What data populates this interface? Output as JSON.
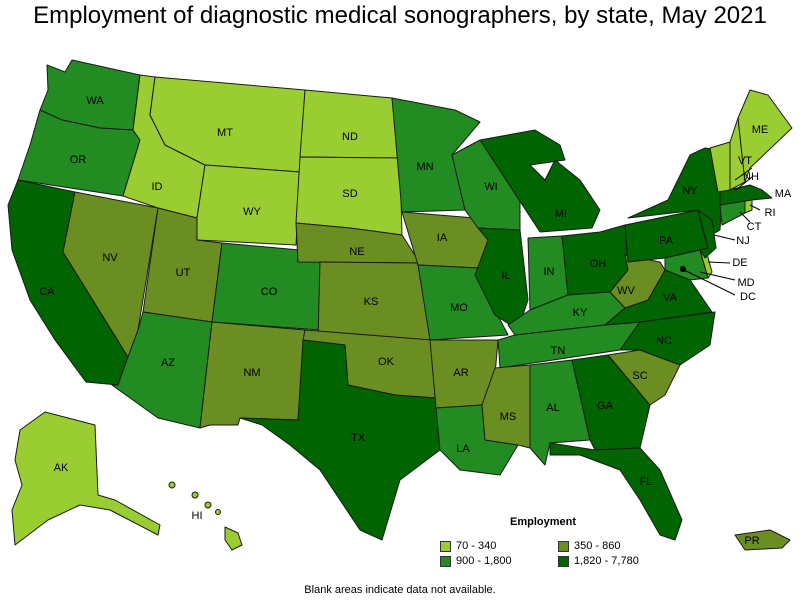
{
  "title": "Employment of diagnostic medical sonographers, by state, May 2021",
  "legend": {
    "title": "Employment",
    "items": [
      {
        "label": "70 - 340",
        "color": "#9acd32"
      },
      {
        "label": "350 - 860",
        "color": "#6b8e23"
      },
      {
        "label": "900 - 1,800",
        "color": "#228b22"
      },
      {
        "label": "1,820 - 7,780",
        "color": "#006400"
      }
    ]
  },
  "footnote": "Blank areas indicate data not available.",
  "states": [
    {
      "abbr": "WA",
      "bin": 2
    },
    {
      "abbr": "OR",
      "bin": 2
    },
    {
      "abbr": "CA",
      "bin": 3
    },
    {
      "abbr": "NV",
      "bin": 1
    },
    {
      "abbr": "ID",
      "bin": 0
    },
    {
      "abbr": "MT",
      "bin": 0
    },
    {
      "abbr": "WY",
      "bin": 0
    },
    {
      "abbr": "UT",
      "bin": 1
    },
    {
      "abbr": "AZ",
      "bin": 2
    },
    {
      "abbr": "CO",
      "bin": 2
    },
    {
      "abbr": "NM",
      "bin": 1
    },
    {
      "abbr": "ND",
      "bin": 0
    },
    {
      "abbr": "SD",
      "bin": 0
    },
    {
      "abbr": "NE",
      "bin": 1
    },
    {
      "abbr": "KS",
      "bin": 1
    },
    {
      "abbr": "OK",
      "bin": 1
    },
    {
      "abbr": "TX",
      "bin": 3
    },
    {
      "abbr": "MN",
      "bin": 2
    },
    {
      "abbr": "IA",
      "bin": 1
    },
    {
      "abbr": "MO",
      "bin": 2
    },
    {
      "abbr": "AR",
      "bin": 1
    },
    {
      "abbr": "LA",
      "bin": 2
    },
    {
      "abbr": "WI",
      "bin": 2
    },
    {
      "abbr": "IL",
      "bin": 3
    },
    {
      "abbr": "MI",
      "bin": 3
    },
    {
      "abbr": "IN",
      "bin": 2
    },
    {
      "abbr": "OH",
      "bin": 3
    },
    {
      "abbr": "KY",
      "bin": 2
    },
    {
      "abbr": "TN",
      "bin": 2
    },
    {
      "abbr": "MS",
      "bin": 1
    },
    {
      "abbr": "AL",
      "bin": 2
    },
    {
      "abbr": "GA",
      "bin": 3
    },
    {
      "abbr": "FL",
      "bin": 3
    },
    {
      "abbr": "SC",
      "bin": 1
    },
    {
      "abbr": "NC",
      "bin": 3
    },
    {
      "abbr": "VA",
      "bin": 3
    },
    {
      "abbr": "WV",
      "bin": 1
    },
    {
      "abbr": "PA",
      "bin": 3
    },
    {
      "abbr": "NY",
      "bin": 3
    },
    {
      "abbr": "ME",
      "bin": 0
    },
    {
      "abbr": "VT",
      "bin": 0
    },
    {
      "abbr": "NH",
      "bin": 0
    },
    {
      "abbr": "MA",
      "bin": 3
    },
    {
      "abbr": "CT",
      "bin": 2
    },
    {
      "abbr": "RI",
      "bin": 0
    },
    {
      "abbr": "NJ",
      "bin": 3
    },
    {
      "abbr": "DE",
      "bin": 0
    },
    {
      "abbr": "MD",
      "bin": 2
    },
    {
      "abbr": "DC",
      "bin": 3
    },
    {
      "abbr": "AK",
      "bin": 0
    },
    {
      "abbr": "HI",
      "bin": 0
    },
    {
      "abbr": "PR",
      "bin": 1
    }
  ]
}
